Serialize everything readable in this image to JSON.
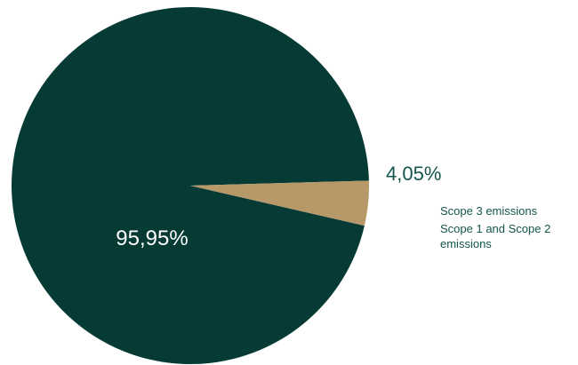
{
  "chart_data": {
    "type": "pie",
    "title": "",
    "start_angle_deg": 0,
    "slices": [
      {
        "label": "Scope 3 emissions",
        "value": 95.95,
        "display": "95,95%",
        "color": "#063b35"
      },
      {
        "label": "Scope 1 and Scope 2 emissions",
        "value": 4.05,
        "display": "4,05%",
        "color": "#b79868"
      }
    ],
    "legend": {
      "placement": "right",
      "entries": [
        "Scope 3 emissions",
        "Scope 1 and Scope 2 emissions"
      ],
      "text_color": "#14564c"
    },
    "label_color_inside": "#ffffff",
    "label_color_outside": "#14564c"
  }
}
